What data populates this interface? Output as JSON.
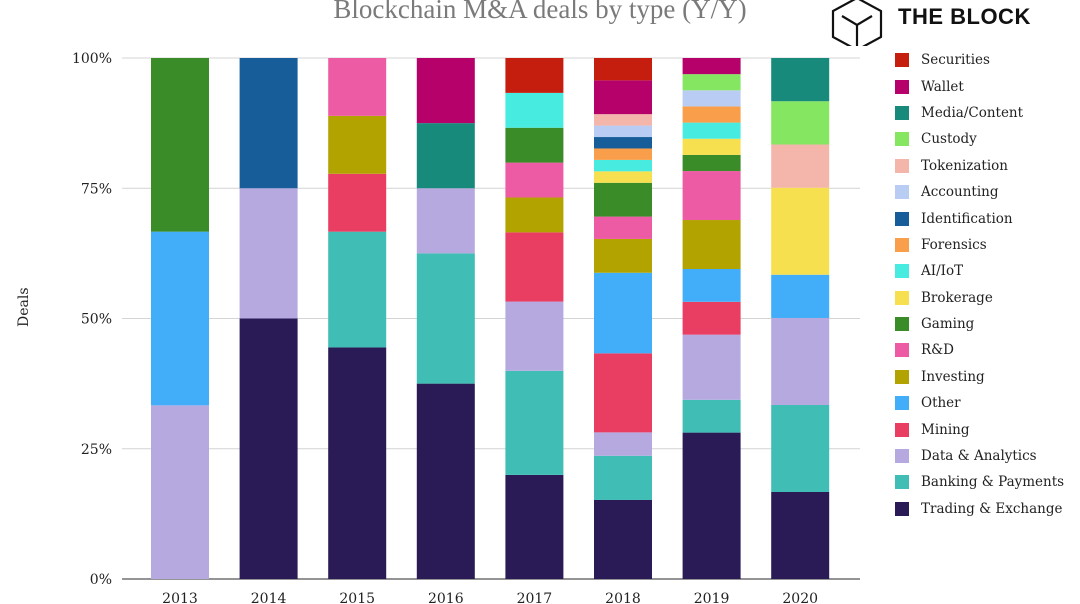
{
  "header": {
    "title": "Blockchain M&A deals by type (Y/Y)",
    "brand": "THE BLOCK"
  },
  "chart_data": {
    "type": "bar",
    "stacked": true,
    "normalized": true,
    "title": "Blockchain M&A deals by type (Y/Y)",
    "ylabel": "Deals",
    "xlabel": "",
    "ylim": [
      0,
      100
    ],
    "y_ticks": [
      "0%",
      "25%",
      "50%",
      "75%",
      "100%"
    ],
    "grid": true,
    "legend_position": "right",
    "categories": [
      "2013",
      "2014",
      "2015",
      "2016",
      "2017",
      "2018",
      "2019",
      "2020"
    ],
    "series": [
      {
        "name": "Trading & Exchange",
        "color": "#2a1b56",
        "values": [
          0,
          50,
          44.4,
          37.5,
          20,
          15.2,
          28.1,
          16.7
        ]
      },
      {
        "name": "Banking & Payments",
        "color": "#40bdb5",
        "values": [
          0,
          0,
          22.2,
          25,
          20,
          8.5,
          6.3,
          16.7
        ]
      },
      {
        "name": "Data & Analytics",
        "color": "#b6a9e0",
        "values": [
          33.3,
          25,
          0,
          12.5,
          13.3,
          4.5,
          12.5,
          16.7
        ]
      },
      {
        "name": "Mining",
        "color": "#ea3d62",
        "values": [
          0,
          0,
          11.1,
          0,
          13.3,
          15.2,
          6.3,
          0
        ]
      },
      {
        "name": "Other",
        "color": "#42adf8",
        "values": [
          33.3,
          0,
          0,
          0,
          0,
          15.5,
          6.3,
          8.3
        ]
      },
      {
        "name": "Investing",
        "color": "#b2a300",
        "values": [
          0,
          0,
          11.1,
          0,
          6.7,
          6.5,
          9.4,
          0
        ]
      },
      {
        "name": "R&D",
        "color": "#ee5ba5",
        "values": [
          0,
          0,
          11.1,
          0,
          6.7,
          4.3,
          9.4,
          0
        ]
      },
      {
        "name": "Gaming",
        "color": "#3a8c28",
        "values": [
          33.3,
          0,
          0,
          0,
          6.7,
          6.5,
          3.1,
          0
        ]
      },
      {
        "name": "Brokerage",
        "color": "#f6e04f",
        "values": [
          0,
          0,
          0,
          0,
          0,
          2.2,
          3.1,
          16.7
        ]
      },
      {
        "name": "AI/IoT",
        "color": "#47ebe0",
        "values": [
          0,
          0,
          0,
          0,
          6.7,
          2.2,
          3.1,
          0
        ]
      },
      {
        "name": "Forensics",
        "color": "#f99f4c",
        "values": [
          0,
          0,
          0,
          0,
          0,
          2.2,
          3.1,
          0
        ]
      },
      {
        "name": "Identification",
        "color": "#175d9a",
        "values": [
          0,
          25,
          0,
          0,
          0,
          2.2,
          0,
          0
        ]
      },
      {
        "name": "Accounting",
        "color": "#b9cdf4",
        "values": [
          0,
          0,
          0,
          0,
          0,
          2.2,
          3.1,
          0
        ]
      },
      {
        "name": "Tokenization",
        "color": "#f4b5ab",
        "values": [
          0,
          0,
          0,
          0,
          0,
          2.2,
          0,
          8.3
        ]
      },
      {
        "name": "Custody",
        "color": "#85e661",
        "values": [
          0,
          0,
          0,
          0,
          0,
          0,
          3.1,
          8.3
        ]
      },
      {
        "name": "Media/Content",
        "color": "#178a7c",
        "values": [
          0,
          0,
          0,
          12.5,
          0,
          0,
          0,
          8.3
        ]
      },
      {
        "name": "Wallet",
        "color": "#b6006a",
        "values": [
          0,
          0,
          0,
          12.5,
          0,
          6.5,
          3.1,
          0
        ]
      },
      {
        "name": "Securities",
        "color": "#c51d0e",
        "values": [
          0,
          0,
          0,
          0,
          6.7,
          4.3,
          0,
          0
        ]
      }
    ]
  }
}
